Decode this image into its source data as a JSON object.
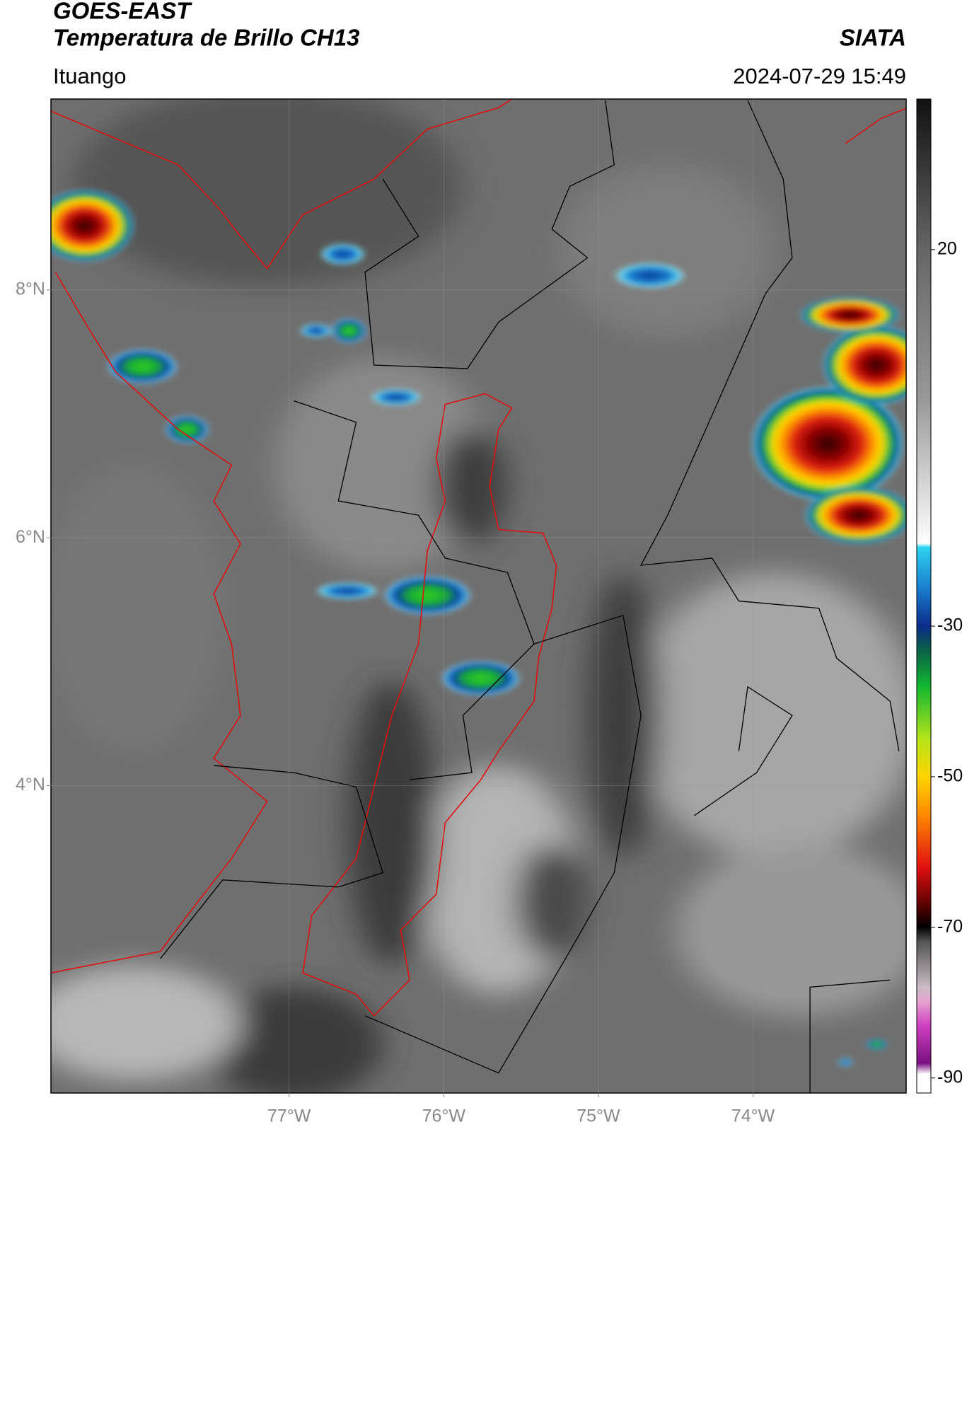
{
  "chart_data": {
    "type": "map",
    "title": "GOES-EAST",
    "subtitle": "Temperatura de Brillo CH13",
    "source": "SIATA",
    "location": "Ituango",
    "timestamp": "2024-07-29 15:49",
    "xlim": [
      -78.54,
      -73.01
    ],
    "ylim": [
      1.52,
      9.54
    ],
    "xticks": [
      {
        "value": -77,
        "label": "77°W"
      },
      {
        "value": -76,
        "label": "76°W"
      },
      {
        "value": -75,
        "label": "75°W"
      },
      {
        "value": -74,
        "label": "74°W"
      }
    ],
    "yticks": [
      {
        "value": 8,
        "label": "8°N"
      },
      {
        "value": 6,
        "label": "6°N"
      },
      {
        "value": 4,
        "label": "4°N"
      }
    ],
    "grid": true,
    "colorbar": {
      "lim": [
        -92,
        40
      ],
      "ticks": [
        20,
        -30,
        -50,
        -70,
        -90
      ]
    }
  }
}
